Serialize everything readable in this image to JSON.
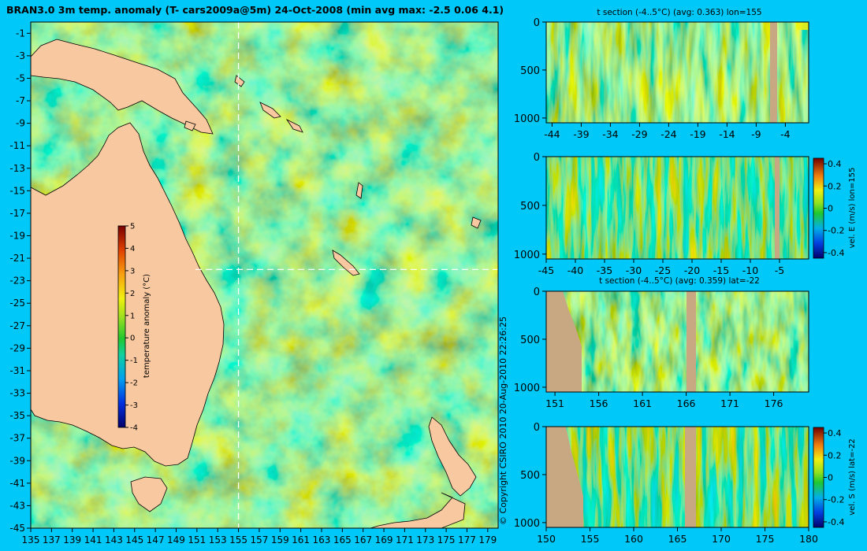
{
  "page": {
    "title": "BRAN3.0 3m temp. anomaly (T- cars2009a@5m) 24-Oct-2008 (min avg max: -2.5 0.06 4.1)",
    "copyright": "© Copyright CSIRO 2010  20-Aug-2010 22:26:25"
  },
  "colors": {
    "background": "#00C8F8",
    "land": "#F8C8A0",
    "section_land": "#C8A882",
    "ocean_mean": "#20C830",
    "crosshair": "#FFFFFF"
  },
  "chart_data": [
    {
      "id": "map",
      "type": "heatmap",
      "x_ticks": [
        "135",
        "137",
        "139",
        "141",
        "143",
        "145",
        "147",
        "149",
        "151",
        "153",
        "155",
        "157",
        "159",
        "161",
        "163",
        "165",
        "167",
        "169",
        "171",
        "173",
        "175",
        "177",
        "179"
      ],
      "y_ticks": [
        "-1",
        "-3",
        "-5",
        "-7",
        "-9",
        "-11",
        "-13",
        "-15",
        "-17",
        "-19",
        "-21",
        "-23",
        "-25",
        "-27",
        "-29",
        "-31",
        "-33",
        "-35",
        "-37",
        "-39",
        "-41",
        "-43",
        "-45"
      ],
      "xlim": [
        135,
        180
      ],
      "ylim": [
        -45,
        0
      ],
      "crosshair": {
        "lon": 155,
        "lat": -22
      },
      "colorbar": {
        "label": "temperature anomaly (°C)",
        "ticks": [
          "5",
          "4",
          "3",
          "2",
          "1",
          "0",
          "-1",
          "-2",
          "-3",
          "-4"
        ],
        "range": [
          -4,
          5
        ]
      }
    },
    {
      "id": "t-section-lon",
      "type": "heatmap",
      "title": "t section (-4..5°C) (avg: 0.363) lon=155",
      "x_ticks": [
        "-44",
        "-39",
        "-34",
        "-29",
        "-24",
        "-19",
        "-14",
        "-9",
        "-4"
      ],
      "y_ticks": [
        "0",
        "500",
        "1000"
      ],
      "xlim": [
        -45,
        0
      ],
      "ylim": [
        1050,
        0
      ]
    },
    {
      "id": "vel-e-section-lon",
      "type": "heatmap",
      "x_ticks": [
        "-45",
        "-40",
        "-35",
        "-30",
        "-25",
        "-20",
        "-15",
        "-10",
        "-5"
      ],
      "y_ticks": [
        "0",
        "500",
        "1000"
      ],
      "xlim": [
        -45,
        0
      ],
      "ylim": [
        1050,
        0
      ],
      "colorbar": {
        "label": "vel. E (m/s) lon=155",
        "ticks": [
          "0.4",
          "0.2",
          "0",
          "-0.2",
          "-0.4"
        ],
        "range": [
          -0.45,
          0.45
        ]
      }
    },
    {
      "id": "t-section-lat",
      "type": "heatmap",
      "title": "t section (-4..5°C) (avg: 0.359) lat=-22",
      "x_ticks": [
        "151",
        "156",
        "161",
        "166",
        "171",
        "176"
      ],
      "y_ticks": [
        "0",
        "500",
        "1000"
      ],
      "xlim": [
        150,
        180
      ],
      "ylim": [
        1050,
        0
      ]
    },
    {
      "id": "vel-s-section-lat",
      "type": "heatmap",
      "x_ticks": [
        "150",
        "155",
        "160",
        "165",
        "170",
        "175",
        "180"
      ],
      "y_ticks": [
        "0",
        "500",
        "1000"
      ],
      "xlim": [
        150,
        180
      ],
      "ylim": [
        1050,
        0
      ],
      "colorbar": {
        "label": "vel. S (m/s) lat=-22",
        "ticks": [
          "0.4",
          "0.2",
          "0",
          "-0.2",
          "-0.4"
        ],
        "range": [
          -0.45,
          0.45
        ]
      }
    }
  ]
}
